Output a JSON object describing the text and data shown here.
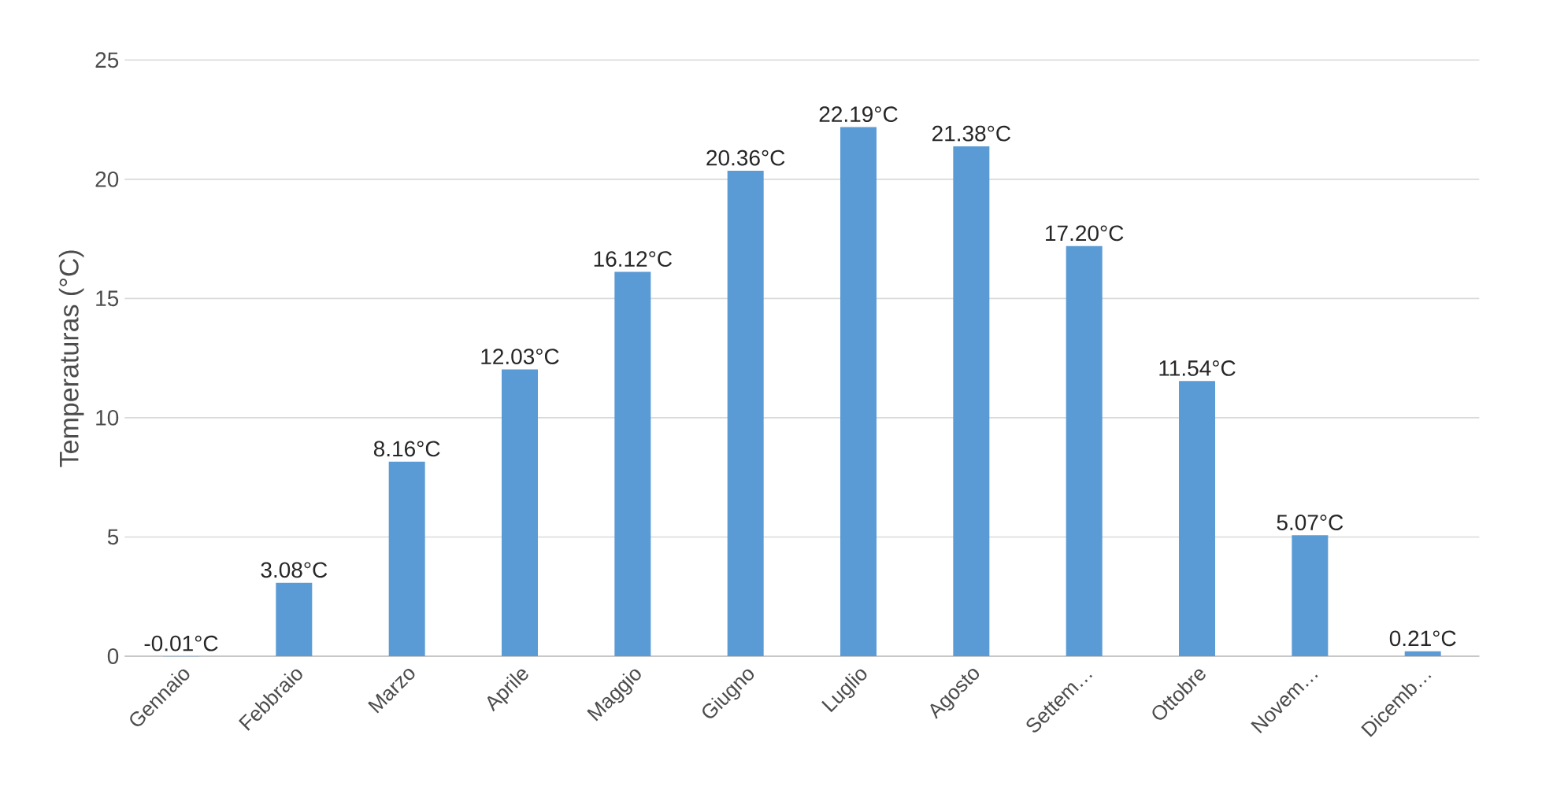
{
  "chart_data": {
    "type": "bar",
    "ylabel": "Temperaturas (°C)",
    "categories": [
      "Gennaio",
      "Febbraio",
      "Marzo",
      "Aprile",
      "Maggio",
      "Giugno",
      "Luglio",
      "Agosto",
      "Settem…",
      "Ottobre",
      "Novem…",
      "Dicemb…"
    ],
    "values": [
      -0.01,
      3.08,
      8.16,
      12.03,
      16.12,
      20.36,
      22.19,
      21.38,
      17.2,
      11.54,
      5.07,
      0.21
    ],
    "value_labels": [
      "-0.01°C",
      "3.08°C",
      "8.16°C",
      "12.03°C",
      "16.12°C",
      "20.36°C",
      "22.19°C",
      "21.38°C",
      "17.20°C",
      "11.54°C",
      "5.07°C",
      "0.21°C"
    ],
    "color": "#5b9bd5",
    "ylim": [
      -0.01,
      25
    ],
    "yticks": [
      0,
      5,
      10,
      15,
      20,
      25
    ],
    "grid": "y"
  }
}
